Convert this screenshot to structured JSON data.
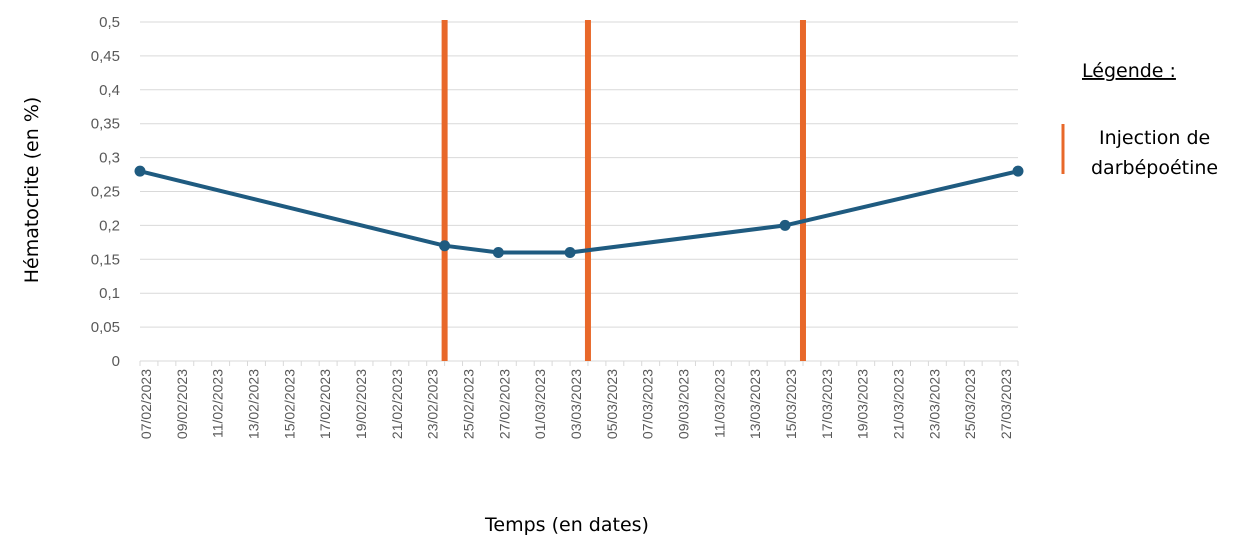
{
  "chart_data": {
    "type": "line",
    "xlabel": "Temps (en dates)",
    "ylabel": "Hématocrite (en %)",
    "ylim": [
      0,
      0.5
    ],
    "y_ticks": [
      {
        "value": 0,
        "label": "0"
      },
      {
        "value": 0.05,
        "label": "0,05"
      },
      {
        "value": 0.1,
        "label": "0,1"
      },
      {
        "value": 0.15,
        "label": "0,15"
      },
      {
        "value": 0.2,
        "label": "0,2"
      },
      {
        "value": 0.25,
        "label": "0,25"
      },
      {
        "value": 0.3,
        "label": "0,3"
      },
      {
        "value": 0.35,
        "label": "0,35"
      },
      {
        "value": 0.4,
        "label": "0,4"
      },
      {
        "value": 0.45,
        "label": "0,45"
      },
      {
        "value": 0.5,
        "label": "0,5"
      }
    ],
    "x_range": [
      "2023-02-07",
      "2023-03-28"
    ],
    "x_tick_labels": [
      "07/02/2023",
      "09/02/2023",
      "11/02/2023",
      "13/02/2023",
      "15/02/2023",
      "17/02/2023",
      "19/02/2023",
      "21/02/2023",
      "23/02/2023",
      "25/02/2023",
      "27/02/2023",
      "01/03/2023",
      "03/03/2023",
      "05/03/2023",
      "07/03/2023",
      "09/03/2023",
      "11/03/2023",
      "13/03/2023",
      "15/03/2023",
      "17/03/2023",
      "19/03/2023",
      "21/03/2023",
      "23/03/2023",
      "25/03/2023",
      "27/03/2023"
    ],
    "grid": true,
    "series": [
      {
        "color": "#1f5b80",
        "points": [
          {
            "date": "2023-02-07",
            "value": 0.28
          },
          {
            "date": "2023-02-24",
            "value": 0.17
          },
          {
            "date": "2023-02-27",
            "value": 0.16
          },
          {
            "date": "2023-03-03",
            "value": 0.16
          },
          {
            "date": "2023-03-15",
            "value": 0.2
          },
          {
            "date": "2023-03-28",
            "value": 0.28
          }
        ]
      }
    ],
    "vertical_markers": {
      "color": "#e8682a",
      "dates": [
        "2023-02-24",
        "2023-03-04",
        "2023-03-16"
      ]
    },
    "legend": {
      "title": "Légende :",
      "placement": "right",
      "entries": [
        {
          "label_lines": [
            "Injection de",
            "darbépoétine"
          ],
          "color": "#e8682a"
        }
      ]
    }
  }
}
